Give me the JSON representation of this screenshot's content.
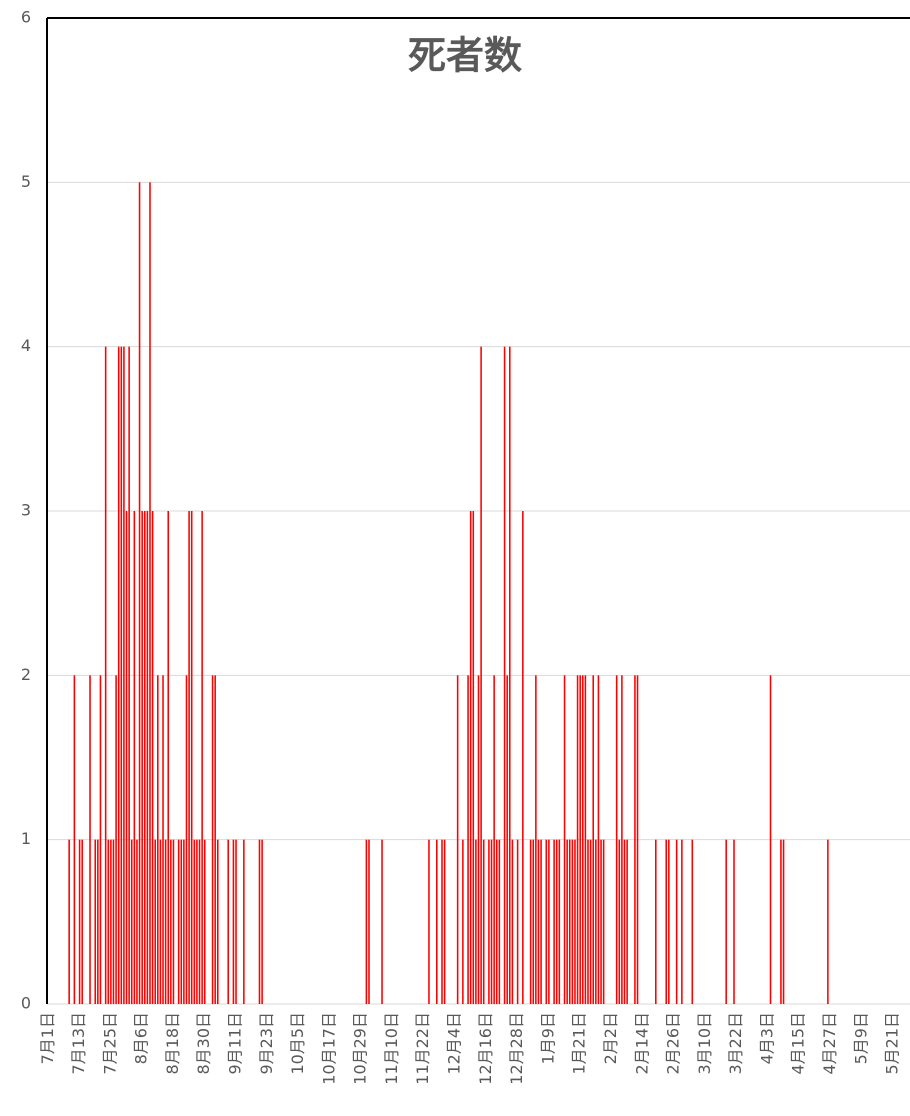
{
  "chart_data": {
    "type": "bar",
    "title": "死者数",
    "color": "#ff0000",
    "grid": true,
    "ylim": [
      0,
      6
    ],
    "yticks": [
      0,
      1,
      2,
      3,
      4,
      5,
      6
    ],
    "categories": [
      "7月1日",
      null,
      null,
      null,
      null,
      null,
      null,
      null,
      null,
      null,
      null,
      null,
      "7月13日",
      null,
      null,
      null,
      null,
      null,
      null,
      null,
      null,
      null,
      null,
      null,
      "7月25日",
      null,
      null,
      null,
      null,
      null,
      null,
      null,
      null,
      null,
      null,
      null,
      "8月6日",
      null,
      null,
      null,
      null,
      null,
      null,
      null,
      null,
      null,
      null,
      null,
      "8月18日",
      null,
      null,
      null,
      null,
      null,
      null,
      null,
      null,
      null,
      null,
      null,
      "8月30日",
      null,
      null,
      null,
      null,
      null,
      null,
      null,
      null,
      null,
      null,
      null,
      "9月11日",
      null,
      null,
      null,
      null,
      null,
      null,
      null,
      null,
      null,
      null,
      null,
      "9月23日",
      null,
      null,
      null,
      null,
      null,
      null,
      null,
      null,
      null,
      null,
      null,
      "10月5日",
      null,
      null,
      null,
      null,
      null,
      null,
      null,
      null,
      null,
      null,
      null,
      "10月17日",
      null,
      null,
      null,
      null,
      null,
      null,
      null,
      null,
      null,
      null,
      null,
      "10月29日",
      null,
      null,
      null,
      null,
      null,
      null,
      null,
      null,
      null,
      null,
      null,
      "11月10日",
      null,
      null,
      null,
      null,
      null,
      null,
      null,
      null,
      null,
      null,
      null,
      "11月22日",
      null,
      null,
      null,
      null,
      null,
      null,
      null,
      null,
      null,
      null,
      null,
      "12月4日",
      null,
      null,
      null,
      null,
      null,
      null,
      null,
      null,
      null,
      null,
      null,
      "12月16日",
      null,
      null,
      null,
      null,
      null,
      null,
      null,
      null,
      null,
      null,
      null,
      "12月28日",
      null,
      null,
      null,
      null,
      null,
      null,
      null,
      null,
      null,
      null,
      null,
      "1月9日",
      null,
      null,
      null,
      null,
      null,
      null,
      null,
      null,
      null,
      null,
      null,
      "1月21日",
      null,
      null,
      null,
      null,
      null,
      null,
      null,
      null,
      null,
      null,
      null,
      "2月2日",
      null,
      null,
      null,
      null,
      null,
      null,
      null,
      null,
      null,
      null,
      null,
      "2月14日",
      null,
      null,
      null,
      null,
      null,
      null,
      null,
      null,
      null,
      null,
      null,
      "2月26日",
      null,
      null,
      null,
      null,
      null,
      null,
      null,
      null,
      null,
      null,
      null,
      "3月10日",
      null,
      null,
      null,
      null,
      null,
      null,
      null,
      null,
      null,
      null,
      null,
      "3月22日",
      null,
      null,
      null,
      null,
      null,
      null,
      null,
      null,
      null,
      null,
      null,
      "4月3日",
      null,
      null,
      null,
      null,
      null,
      null,
      null,
      null,
      null,
      null,
      null,
      "4月15日",
      null,
      null,
      null,
      null,
      null,
      null,
      null,
      null,
      null,
      null,
      null,
      "4月27日",
      null,
      null,
      null,
      null,
      null,
      null,
      null,
      null,
      null,
      null,
      null,
      "5月9日",
      null,
      null,
      null,
      null,
      null,
      null,
      null,
      null,
      null,
      null,
      null,
      "5月21日",
      null,
      null,
      null,
      null,
      null,
      null
    ],
    "values": [
      0,
      0,
      0,
      0,
      0,
      0,
      0,
      0,
      1,
      0,
      2,
      0,
      1,
      1,
      0,
      0,
      2,
      0,
      1,
      1,
      2,
      0,
      4,
      1,
      1,
      1,
      2,
      4,
      4,
      4,
      3,
      4,
      1,
      3,
      1,
      5,
      3,
      3,
      3,
      5,
      3,
      1,
      2,
      1,
      2,
      1,
      3,
      1,
      1,
      0,
      1,
      1,
      1,
      2,
      3,
      3,
      1,
      1,
      1,
      3,
      1,
      0,
      0,
      2,
      2,
      1,
      0,
      0,
      0,
      1,
      0,
      1,
      1,
      0,
      0,
      1,
      0,
      0,
      0,
      0,
      0,
      1,
      1,
      0,
      0,
      0,
      0,
      0,
      0,
      0,
      0,
      0,
      0,
      0,
      0,
      0,
      0,
      0,
      0,
      0,
      0,
      0,
      0,
      0,
      0,
      0,
      0,
      0,
      0,
      0,
      0,
      0,
      0,
      0,
      0,
      0,
      0,
      0,
      0,
      0,
      0,
      0,
      1,
      1,
      0,
      0,
      0,
      0,
      1,
      0,
      0,
      0,
      0,
      0,
      0,
      0,
      0,
      0,
      0,
      0,
      0,
      0,
      0,
      0,
      0,
      0,
      1,
      0,
      0,
      1,
      0,
      1,
      1,
      0,
      0,
      0,
      0,
      2,
      0,
      1,
      0,
      2,
      3,
      3,
      1,
      2,
      4,
      1,
      0,
      1,
      1,
      2,
      1,
      1,
      0,
      4,
      2,
      4,
      1,
      0,
      1,
      0,
      3,
      0,
      0,
      1,
      1,
      2,
      1,
      1,
      0,
      1,
      1,
      0,
      1,
      1,
      1,
      0,
      2,
      1,
      1,
      1,
      1,
      2,
      2,
      2,
      2,
      1,
      1,
      2,
      1,
      2,
      1,
      1,
      0,
      0,
      0,
      0,
      2,
      1,
      2,
      1,
      1,
      0,
      0,
      2,
      2,
      0,
      0,
      0,
      0,
      0,
      0,
      1,
      0,
      0,
      0,
      1,
      1,
      0,
      0,
      1,
      0,
      1,
      0,
      0,
      0,
      1,
      0,
      0,
      0,
      0,
      0,
      0,
      0,
      0,
      0,
      0,
      0,
      0,
      1,
      0,
      0,
      1,
      0,
      0,
      0,
      0,
      0,
      0,
      0,
      0,
      0,
      0,
      0,
      0,
      0,
      2,
      0,
      0,
      0,
      1,
      1,
      0,
      0,
      0,
      0,
      0,
      0,
      0,
      0,
      0,
      0,
      0,
      0,
      0,
      0,
      0,
      0,
      1,
      0,
      0,
      0,
      0,
      0,
      0,
      0,
      0,
      0,
      0,
      0,
      0,
      0,
      0,
      0,
      0,
      0,
      0,
      0,
      0,
      0,
      0,
      0,
      0,
      0,
      0,
      0,
      0,
      0,
      0,
      0
    ]
  }
}
